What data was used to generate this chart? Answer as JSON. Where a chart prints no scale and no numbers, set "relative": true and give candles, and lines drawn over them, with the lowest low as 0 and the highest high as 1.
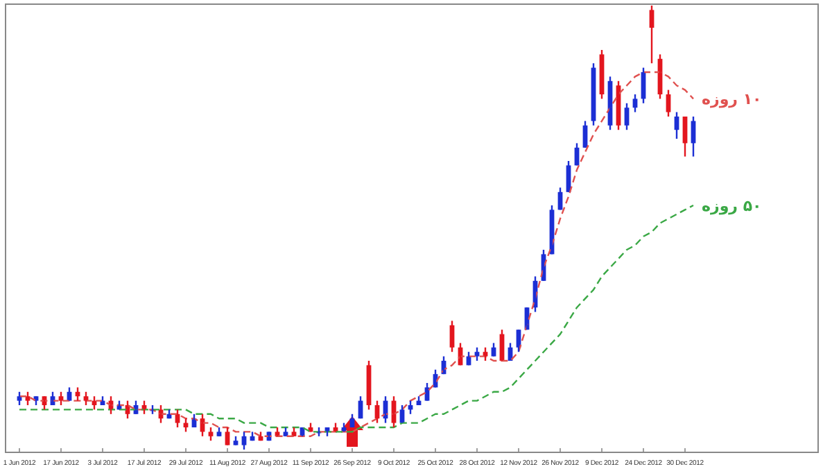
{
  "chart_data": {
    "type": "candlestick",
    "relative": true,
    "categories": [
      "1 Jun 2012",
      null,
      null,
      null,
      null,
      "17 Jun 2012",
      null,
      null,
      null,
      null,
      "3 Jul 2012",
      null,
      null,
      null,
      null,
      "17 Jul 2012",
      null,
      null,
      null,
      null,
      "29 Jul 2012",
      null,
      null,
      null,
      null,
      "11 Aug 2012",
      null,
      null,
      null,
      null,
      "27 Aug 2012",
      null,
      null,
      null,
      null,
      "11 Sep 2012",
      null,
      null,
      null,
      null,
      "26 Sep 2012",
      null,
      null,
      null,
      null,
      "9 Oct 2012",
      null,
      null,
      null,
      null,
      "25 Oct 2012",
      null,
      null,
      null,
      null,
      "28 Oct 2012",
      null,
      null,
      null,
      null,
      "12 Nov 2012",
      null,
      null,
      null,
      null,
      "26 Nov 2012",
      null,
      null,
      null,
      null,
      "9 Dec 2012",
      null,
      null,
      null,
      null,
      "24 Dec 2012",
      null,
      null,
      null,
      null,
      "30 Dec 2012",
      null
    ],
    "ohlc": [
      [
        0.11,
        0.13,
        0.1,
        0.12
      ],
      [
        0.12,
        0.13,
        0.1,
        0.11
      ],
      [
        0.11,
        0.12,
        0.1,
        0.12
      ],
      [
        0.12,
        0.12,
        0.09,
        0.1
      ],
      [
        0.1,
        0.13,
        0.1,
        0.12
      ],
      [
        0.12,
        0.13,
        0.1,
        0.11
      ],
      [
        0.11,
        0.14,
        0.11,
        0.13
      ],
      [
        0.13,
        0.14,
        0.11,
        0.12
      ],
      [
        0.12,
        0.13,
        0.1,
        0.11
      ],
      [
        0.11,
        0.12,
        0.09,
        0.1
      ],
      [
        0.1,
        0.12,
        0.1,
        0.11
      ],
      [
        0.11,
        0.12,
        0.08,
        0.09
      ],
      [
        0.09,
        0.11,
        0.09,
        0.1
      ],
      [
        0.1,
        0.11,
        0.07,
        0.08
      ],
      [
        0.08,
        0.11,
        0.08,
        0.1
      ],
      [
        0.1,
        0.11,
        0.08,
        0.09
      ],
      [
        0.09,
        0.1,
        0.08,
        0.09
      ],
      [
        0.09,
        0.1,
        0.06,
        0.07
      ],
      [
        0.07,
        0.09,
        0.07,
        0.08
      ],
      [
        0.08,
        0.09,
        0.05,
        0.06
      ],
      [
        0.06,
        0.07,
        0.04,
        0.05
      ],
      [
        0.05,
        0.08,
        0.05,
        0.07
      ],
      [
        0.07,
        0.08,
        0.03,
        0.04
      ],
      [
        0.04,
        0.05,
        0.02,
        0.03
      ],
      [
        0.03,
        0.05,
        0.03,
        0.04
      ],
      [
        0.04,
        0.05,
        0.01,
        0.01
      ],
      [
        0.01,
        0.03,
        0.01,
        0.02
      ],
      [
        0.01,
        0.04,
        0.0,
        0.03
      ],
      [
        0.02,
        0.04,
        0.02,
        0.03
      ],
      [
        0.03,
        0.04,
        0.02,
        0.02
      ],
      [
        0.02,
        0.04,
        0.02,
        0.04
      ],
      [
        0.04,
        0.05,
        0.03,
        0.03
      ],
      [
        0.03,
        0.05,
        0.03,
        0.04
      ],
      [
        0.04,
        0.05,
        0.03,
        0.03
      ],
      [
        0.03,
        0.05,
        0.03,
        0.05
      ],
      [
        0.05,
        0.06,
        0.04,
        0.04
      ],
      [
        0.04,
        0.05,
        0.03,
        0.04
      ],
      [
        0.04,
        0.05,
        0.03,
        0.05
      ],
      [
        0.05,
        0.06,
        0.04,
        0.04
      ],
      [
        0.04,
        0.06,
        0.04,
        0.05
      ],
      [
        0.05,
        0.08,
        0.05,
        0.07
      ],
      [
        0.07,
        0.12,
        0.07,
        0.11
      ],
      [
        0.19,
        0.2,
        0.09,
        0.1
      ],
      [
        0.1,
        0.11,
        0.06,
        0.07
      ],
      [
        0.07,
        0.12,
        0.06,
        0.11
      ],
      [
        0.11,
        0.12,
        0.05,
        0.06
      ],
      [
        0.06,
        0.1,
        0.06,
        0.09
      ],
      [
        0.09,
        0.11,
        0.08,
        0.1
      ],
      [
        0.1,
        0.12,
        0.1,
        0.11
      ],
      [
        0.11,
        0.15,
        0.11,
        0.14
      ],
      [
        0.14,
        0.18,
        0.14,
        0.17
      ],
      [
        0.17,
        0.21,
        0.17,
        0.2
      ],
      [
        0.28,
        0.29,
        0.22,
        0.23
      ],
      [
        0.23,
        0.24,
        0.19,
        0.19
      ],
      [
        0.19,
        0.22,
        0.19,
        0.21
      ],
      [
        0.21,
        0.23,
        0.2,
        0.22
      ],
      [
        0.22,
        0.23,
        0.2,
        0.21
      ],
      [
        0.21,
        0.24,
        0.21,
        0.23
      ],
      [
        0.26,
        0.27,
        0.2,
        0.2
      ],
      [
        0.2,
        0.24,
        0.2,
        0.23
      ],
      [
        0.23,
        0.27,
        0.22,
        0.27
      ],
      [
        0.27,
        0.32,
        0.27,
        0.32
      ],
      [
        0.32,
        0.39,
        0.31,
        0.38
      ],
      [
        0.38,
        0.45,
        0.38,
        0.44
      ],
      [
        0.44,
        0.55,
        0.44,
        0.54
      ],
      [
        0.54,
        0.59,
        0.54,
        0.58
      ],
      [
        0.58,
        0.65,
        0.58,
        0.64
      ],
      [
        0.64,
        0.69,
        0.64,
        0.68
      ],
      [
        0.68,
        0.74,
        0.68,
        0.73
      ],
      [
        0.74,
        0.87,
        0.73,
        0.86
      ],
      [
        0.89,
        0.9,
        0.79,
        0.8
      ],
      [
        0.73,
        0.84,
        0.72,
        0.83
      ],
      [
        0.82,
        0.83,
        0.72,
        0.73
      ],
      [
        0.73,
        0.78,
        0.72,
        0.77
      ],
      [
        0.77,
        0.8,
        0.76,
        0.79
      ],
      [
        0.79,
        0.86,
        0.78,
        0.85
      ],
      [
        0.99,
        1.0,
        0.87,
        0.95
      ],
      [
        0.88,
        0.89,
        0.79,
        0.8
      ],
      [
        0.8,
        0.81,
        0.75,
        0.76
      ],
      [
        0.72,
        0.76,
        0.7,
        0.75
      ],
      [
        0.75,
        0.75,
        0.66,
        0.69
      ],
      [
        0.69,
        0.75,
        0.66,
        0.74
      ]
    ],
    "colors": [
      "#1c2fd4",
      "#e3161e",
      "#1c2fd4",
      "#e3161e",
      "#1c2fd4",
      "#e3161e",
      "#1c2fd4",
      "#e3161e",
      "#e3161e",
      "#e3161e",
      "#1c2fd4",
      "#e3161e",
      "#1c2fd4",
      "#e3161e",
      "#1c2fd4",
      "#e3161e",
      "#1c2fd4",
      "#e3161e",
      "#1c2fd4",
      "#e3161e",
      "#e3161e",
      "#1c2fd4",
      "#e3161e",
      "#e3161e",
      "#1c2fd4",
      "#e3161e",
      "#1c2fd4",
      "#1c2fd4",
      "#1c2fd4",
      "#e3161e",
      "#1c2fd4",
      "#e3161e",
      "#1c2fd4",
      "#e3161e",
      "#1c2fd4",
      "#e3161e",
      "#1c2fd4",
      "#1c2fd4",
      "#e3161e",
      "#1c2fd4",
      "#1c2fd4",
      "#1c2fd4",
      "#e3161e",
      "#e3161e",
      "#1c2fd4",
      "#e3161e",
      "#1c2fd4",
      "#1c2fd4",
      "#1c2fd4",
      "#1c2fd4",
      "#1c2fd4",
      "#1c2fd4",
      "#e3161e",
      "#e3161e",
      "#1c2fd4",
      "#1c2fd4",
      "#e3161e",
      "#1c2fd4",
      "#e3161e",
      "#1c2fd4",
      "#1c2fd4",
      "#1c2fd4",
      "#1c2fd4",
      "#1c2fd4",
      "#1c2fd4",
      "#1c2fd4",
      "#1c2fd4",
      "#1c2fd4",
      "#1c2fd4",
      "#1c2fd4",
      "#e3161e",
      "#1c2fd4",
      "#e3161e",
      "#1c2fd4",
      "#1c2fd4",
      "#1c2fd4",
      "#e3161e",
      "#e3161e",
      "#e3161e",
      "#1c2fd4",
      "#e3161e",
      "#1c2fd4"
    ],
    "series": [
      {
        "name": "۱۰ روزه",
        "type": "line",
        "line_style": "dashed",
        "color": "#e0514f",
        "values": [
          0.12,
          0.12,
          0.11,
          0.11,
          0.11,
          0.11,
          0.11,
          0.11,
          0.11,
          0.11,
          0.11,
          0.1,
          0.1,
          0.1,
          0.09,
          0.09,
          0.09,
          0.08,
          0.08,
          0.08,
          0.07,
          0.07,
          0.06,
          0.06,
          0.05,
          0.05,
          0.04,
          0.04,
          0.04,
          0.03,
          0.03,
          0.03,
          0.03,
          0.03,
          0.03,
          0.03,
          0.04,
          0.04,
          0.04,
          0.04,
          0.04,
          0.05,
          0.06,
          0.07,
          0.08,
          0.08,
          0.09,
          0.11,
          0.12,
          0.13,
          0.15,
          0.18,
          0.19,
          0.21,
          0.21,
          0.21,
          0.21,
          0.2,
          0.2,
          0.2,
          0.22,
          0.28,
          0.34,
          0.41,
          0.46,
          0.52,
          0.57,
          0.63,
          0.67,
          0.71,
          0.74,
          0.77,
          0.8,
          0.82,
          0.84,
          0.85,
          0.85,
          0.85,
          0.84,
          0.82,
          0.81,
          0.79
        ]
      },
      {
        "name": "۵۰ روزه",
        "type": "line",
        "line_style": "dashed",
        "color": "#3aa845",
        "values": [
          0.09,
          0.09,
          0.09,
          0.09,
          0.09,
          0.09,
          0.09,
          0.09,
          0.09,
          0.09,
          0.09,
          0.09,
          0.09,
          0.09,
          0.09,
          0.09,
          0.09,
          0.09,
          0.09,
          0.09,
          0.09,
          0.08,
          0.08,
          0.08,
          0.07,
          0.07,
          0.07,
          0.06,
          0.06,
          0.06,
          0.05,
          0.05,
          0.05,
          0.05,
          0.05,
          0.04,
          0.04,
          0.04,
          0.04,
          0.04,
          0.04,
          0.05,
          0.05,
          0.05,
          0.05,
          0.05,
          0.06,
          0.06,
          0.06,
          0.07,
          0.08,
          0.08,
          0.09,
          0.1,
          0.11,
          0.11,
          0.12,
          0.13,
          0.13,
          0.14,
          0.16,
          0.18,
          0.2,
          0.22,
          0.24,
          0.26,
          0.29,
          0.32,
          0.34,
          0.36,
          0.39,
          0.41,
          0.43,
          0.45,
          0.46,
          0.48,
          0.49,
          0.51,
          0.52,
          0.53,
          0.54,
          0.55
        ]
      }
    ]
  }
}
